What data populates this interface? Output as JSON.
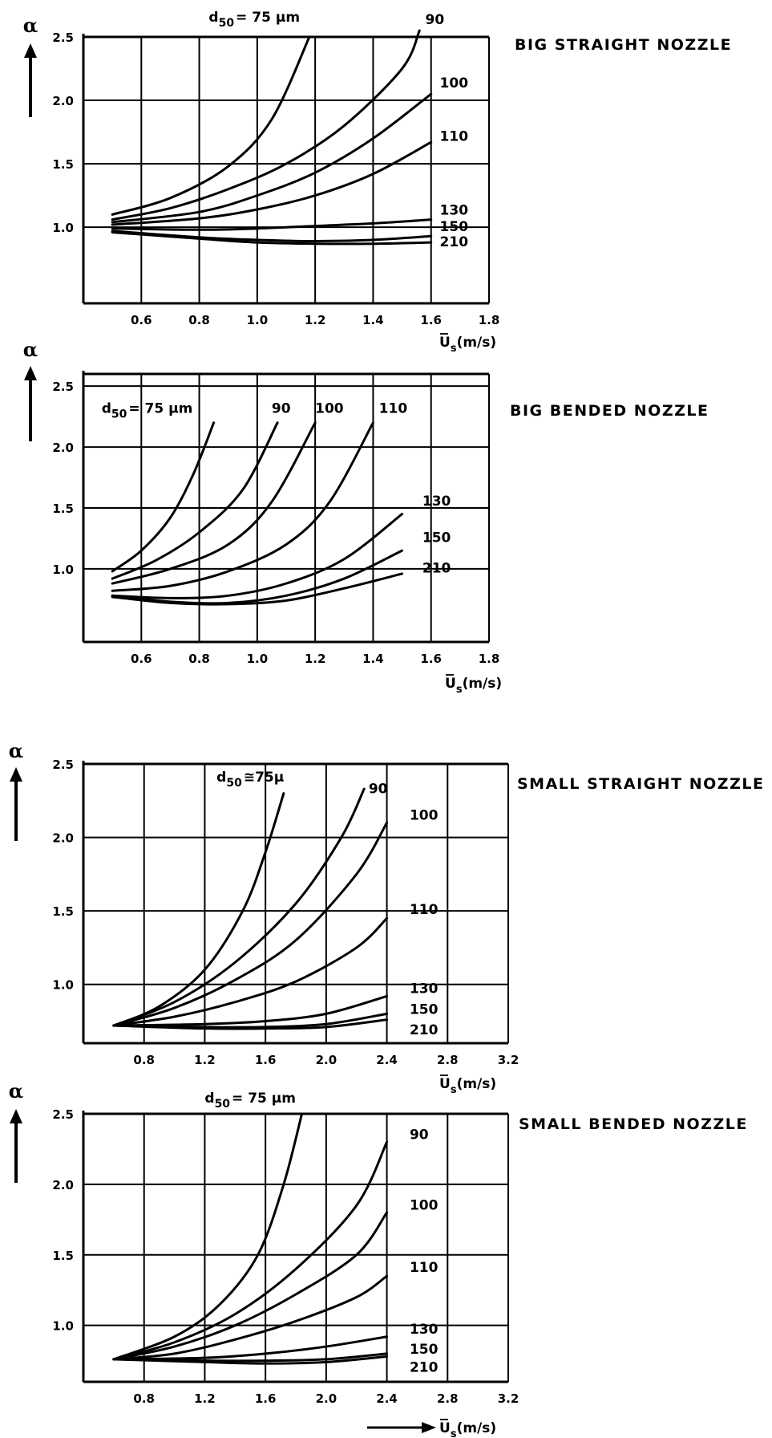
{
  "chart_data": [
    {
      "type": "line",
      "title": "BIG STRAIGHT NOZZLE",
      "ylabel": "α",
      "xlabel_main": "U",
      "xlabel_sub": "s",
      "xlabel_unit": "(m/s)",
      "xlim": [
        0.4,
        1.8
      ],
      "ylim": [
        0.4,
        2.5
      ],
      "xticks": [
        "0.6",
        "0.8",
        "1.0",
        "1.2",
        "1.4",
        "1.6",
        "1.8"
      ],
      "yticks": [
        "1.0",
        "1.5",
        "2.0",
        "2.5"
      ],
      "grid": true,
      "series": [
        {
          "name": "d50 = 75 μm",
          "points": [
            [
              0.5,
              1.1
            ],
            [
              0.7,
              1.23
            ],
            [
              0.9,
              1.48
            ],
            [
              1.05,
              1.85
            ],
            [
              1.18,
              2.5
            ]
          ]
        },
        {
          "name": "90",
          "points": [
            [
              0.5,
              1.06
            ],
            [
              0.7,
              1.15
            ],
            [
              0.9,
              1.3
            ],
            [
              1.1,
              1.5
            ],
            [
              1.3,
              1.8
            ],
            [
              1.5,
              2.25
            ],
            [
              1.56,
              2.55
            ]
          ]
        },
        {
          "name": "100",
          "points": [
            [
              0.5,
              1.04
            ],
            [
              0.8,
              1.12
            ],
            [
              1.0,
              1.25
            ],
            [
              1.2,
              1.43
            ],
            [
              1.4,
              1.7
            ],
            [
              1.6,
              2.05
            ]
          ]
        },
        {
          "name": "110",
          "points": [
            [
              0.5,
              1.02
            ],
            [
              0.8,
              1.07
            ],
            [
              1.0,
              1.14
            ],
            [
              1.2,
              1.25
            ],
            [
              1.4,
              1.42
            ],
            [
              1.6,
              1.67
            ]
          ]
        },
        {
          "name": "130",
          "points": [
            [
              0.5,
              0.99
            ],
            [
              0.8,
              0.98
            ],
            [
              1.0,
              0.99
            ],
            [
              1.2,
              1.01
            ],
            [
              1.4,
              1.03
            ],
            [
              1.6,
              1.06
            ]
          ]
        },
        {
          "name": "150",
          "points": [
            [
              0.5,
              0.97
            ],
            [
              0.8,
              0.92
            ],
            [
              1.0,
              0.9
            ],
            [
              1.2,
              0.89
            ],
            [
              1.4,
              0.9
            ],
            [
              1.6,
              0.93
            ]
          ]
        },
        {
          "name": "210",
          "points": [
            [
              0.5,
              0.96
            ],
            [
              0.8,
              0.91
            ],
            [
              1.0,
              0.88
            ],
            [
              1.2,
              0.87
            ],
            [
              1.4,
              0.87
            ],
            [
              1.6,
              0.88
            ]
          ]
        }
      ],
      "labels": [
        {
          "text": "d",
          "sub": "50",
          "rest": "= 75 μm",
          "x": 0.99,
          "y": 2.62
        },
        {
          "text": "90",
          "x": 1.58,
          "y": 2.6
        },
        {
          "text": "100",
          "x": 1.63,
          "y": 2.1
        },
        {
          "text": "110",
          "x": 1.63,
          "y": 1.68
        },
        {
          "text": "130",
          "x": 1.63,
          "y": 1.1
        },
        {
          "text": "150",
          "x": 1.63,
          "y": 0.97
        },
        {
          "text": "210",
          "x": 1.63,
          "y": 0.85
        }
      ]
    },
    {
      "type": "line",
      "title": "BIG BENDED NOZZLE",
      "ylabel": "α",
      "xlabel_main": "U",
      "xlabel_sub": "s",
      "xlabel_unit": "(m/s)",
      "xlim": [
        0.4,
        1.8
      ],
      "ylim": [
        0.4,
        2.6
      ],
      "xticks": [
        "0.6",
        "0.8",
        "1.0",
        "1.2",
        "1.4",
        "1.6",
        "1.8"
      ],
      "yticks": [
        "1.0",
        "1.5",
        "2.0",
        "2.5"
      ],
      "grid": true,
      "series": [
        {
          "name": "d50 = 75 μm",
          "points": [
            [
              0.5,
              0.98
            ],
            [
              0.6,
              1.15
            ],
            [
              0.7,
              1.42
            ],
            [
              0.78,
              1.78
            ],
            [
              0.85,
              2.2
            ]
          ]
        },
        {
          "name": "90",
          "points": [
            [
              0.5,
              0.92
            ],
            [
              0.65,
              1.07
            ],
            [
              0.8,
              1.3
            ],
            [
              0.95,
              1.65
            ],
            [
              1.07,
              2.2
            ]
          ]
        },
        {
          "name": "100",
          "points": [
            [
              0.5,
              0.88
            ],
            [
              0.7,
              1.0
            ],
            [
              0.9,
              1.2
            ],
            [
              1.05,
              1.55
            ],
            [
              1.2,
              2.2
            ]
          ]
        },
        {
          "name": "110",
          "points": [
            [
              0.5,
              0.82
            ],
            [
              0.7,
              0.86
            ],
            [
              0.9,
              0.98
            ],
            [
              1.1,
              1.2
            ],
            [
              1.25,
              1.55
            ],
            [
              1.4,
              2.2
            ]
          ]
        },
        {
          "name": "130",
          "points": [
            [
              0.5,
              0.78
            ],
            [
              0.7,
              0.76
            ],
            [
              0.9,
              0.78
            ],
            [
              1.1,
              0.88
            ],
            [
              1.3,
              1.08
            ],
            [
              1.5,
              1.45
            ]
          ]
        },
        {
          "name": "150",
          "points": [
            [
              0.5,
              0.78
            ],
            [
              0.7,
              0.73
            ],
            [
              0.9,
              0.72
            ],
            [
              1.1,
              0.78
            ],
            [
              1.3,
              0.92
            ],
            [
              1.5,
              1.15
            ]
          ]
        },
        {
          "name": "210",
          "points": [
            [
              0.5,
              0.77
            ],
            [
              0.7,
              0.72
            ],
            [
              0.9,
              0.71
            ],
            [
              1.1,
              0.74
            ],
            [
              1.3,
              0.84
            ],
            [
              1.5,
              0.96
            ]
          ]
        }
      ],
      "labels": [
        {
          "text": "d",
          "sub": "50",
          "rest": "= 75 μm",
          "x": 0.62,
          "y": 2.28
        },
        {
          "text": "90",
          "x": 1.05,
          "y": 2.28
        },
        {
          "text": "100",
          "x": 1.2,
          "y": 2.28
        },
        {
          "text": "110",
          "x": 1.42,
          "y": 2.28
        },
        {
          "text": "130",
          "x": 1.57,
          "y": 1.52
        },
        {
          "text": "150",
          "x": 1.57,
          "y": 1.22
        },
        {
          "text": "210",
          "x": 1.57,
          "y": 0.97
        }
      ]
    },
    {
      "type": "line",
      "title": "SMALL STRAIGHT NOZZLE",
      "ylabel": "α",
      "xlabel_main": "U",
      "xlabel_sub": "s",
      "xlabel_unit": "(m/s)",
      "xlim": [
        0.4,
        3.2
      ],
      "ylim": [
        0.6,
        2.5
      ],
      "xticks": [
        "0.8",
        "1.2",
        "1.6",
        "2.0",
        "2.4",
        "2.8",
        "3.2"
      ],
      "yticks": [
        "1.0",
        "1.5",
        "2.0",
        "2.5"
      ],
      "grid": true,
      "series": [
        {
          "name": "d50 ≅ 75μ",
          "points": [
            [
              0.6,
              0.72
            ],
            [
              0.9,
              0.85
            ],
            [
              1.2,
              1.1
            ],
            [
              1.45,
              1.5
            ],
            [
              1.6,
              1.9
            ],
            [
              1.72,
              2.3
            ]
          ]
        },
        {
          "name": "90",
          "points": [
            [
              0.6,
              0.72
            ],
            [
              1.0,
              0.88
            ],
            [
              1.4,
              1.15
            ],
            [
              1.8,
              1.55
            ],
            [
              2.1,
              2.0
            ],
            [
              2.25,
              2.33
            ]
          ]
        },
        {
          "name": "100",
          "points": [
            [
              0.6,
              0.72
            ],
            [
              1.0,
              0.84
            ],
            [
              1.4,
              1.03
            ],
            [
              1.8,
              1.3
            ],
            [
              2.2,
              1.75
            ],
            [
              2.4,
              2.1
            ]
          ]
        },
        {
          "name": "110",
          "points": [
            [
              0.6,
              0.72
            ],
            [
              1.0,
              0.78
            ],
            [
              1.4,
              0.88
            ],
            [
              1.8,
              1.02
            ],
            [
              2.2,
              1.25
            ],
            [
              2.4,
              1.45
            ]
          ]
        },
        {
          "name": "130",
          "points": [
            [
              0.6,
              0.72
            ],
            [
              1.2,
              0.73
            ],
            [
              1.6,
              0.75
            ],
            [
              2.0,
              0.8
            ],
            [
              2.4,
              0.92
            ]
          ]
        },
        {
          "name": "150",
          "points": [
            [
              0.6,
              0.72
            ],
            [
              1.2,
              0.71
            ],
            [
              1.6,
              0.71
            ],
            [
              2.0,
              0.73
            ],
            [
              2.4,
              0.8
            ]
          ]
        },
        {
          "name": "210",
          "points": [
            [
              0.6,
              0.72
            ],
            [
              1.2,
              0.7
            ],
            [
              1.6,
              0.7
            ],
            [
              2.0,
              0.71
            ],
            [
              2.4,
              0.76
            ]
          ]
        }
      ],
      "labels": [
        {
          "text": "d",
          "sub": "50",
          "rest": "≅75μ",
          "x": 1.5,
          "y": 2.38
        },
        {
          "text": "90",
          "x": 2.28,
          "y": 2.3
        },
        {
          "text": "100",
          "x": 2.55,
          "y": 2.12
        },
        {
          "text": "110",
          "x": 2.55,
          "y": 1.48
        },
        {
          "text": "130",
          "x": 2.55,
          "y": 0.94
        },
        {
          "text": "150",
          "x": 2.55,
          "y": 0.8
        },
        {
          "text": "210",
          "x": 2.55,
          "y": 0.66
        }
      ]
    },
    {
      "type": "line",
      "title": "SMALL BENDED NOZZLE",
      "ylabel": "α",
      "xlabel_main": "U",
      "xlabel_sub": "s",
      "xlabel_unit": "(m/s)",
      "xlim": [
        0.4,
        3.2
      ],
      "ylim": [
        0.6,
        2.5
      ],
      "xticks": [
        "0.8",
        "1.2",
        "1.6",
        "2.0",
        "2.4",
        "2.8",
        "3.2"
      ],
      "yticks": [
        "1.0",
        "1.5",
        "2.0",
        "2.5"
      ],
      "grid": true,
      "series": [
        {
          "name": "d50 = 75 μm",
          "points": [
            [
              0.6,
              0.76
            ],
            [
              1.0,
              0.92
            ],
            [
              1.3,
              1.15
            ],
            [
              1.55,
              1.5
            ],
            [
              1.72,
              2.0
            ],
            [
              1.84,
              2.5
            ]
          ]
        },
        {
          "name": "90",
          "points": [
            [
              0.6,
              0.76
            ],
            [
              1.0,
              0.88
            ],
            [
              1.4,
              1.08
            ],
            [
              1.8,
              1.4
            ],
            [
              2.2,
              1.85
            ],
            [
              2.4,
              2.3
            ]
          ]
        },
        {
          "name": "100",
          "points": [
            [
              0.6,
              0.76
            ],
            [
              1.0,
              0.85
            ],
            [
              1.4,
              1.0
            ],
            [
              1.8,
              1.22
            ],
            [
              2.2,
              1.5
            ],
            [
              2.4,
              1.8
            ]
          ]
        },
        {
          "name": "110",
          "points": [
            [
              0.6,
              0.76
            ],
            [
              1.0,
              0.8
            ],
            [
              1.4,
              0.9
            ],
            [
              1.8,
              1.03
            ],
            [
              2.2,
              1.2
            ],
            [
              2.4,
              1.35
            ]
          ]
        },
        {
          "name": "130",
          "points": [
            [
              0.6,
              0.76
            ],
            [
              1.2,
              0.77
            ],
            [
              1.6,
              0.8
            ],
            [
              2.0,
              0.85
            ],
            [
              2.4,
              0.92
            ]
          ]
        },
        {
          "name": "150",
          "points": [
            [
              0.6,
              0.76
            ],
            [
              1.2,
              0.75
            ],
            [
              1.6,
              0.75
            ],
            [
              2.0,
              0.76
            ],
            [
              2.4,
              0.8
            ]
          ]
        },
        {
          "name": "210",
          "points": [
            [
              0.6,
              0.76
            ],
            [
              1.2,
              0.74
            ],
            [
              1.6,
              0.73
            ],
            [
              2.0,
              0.74
            ],
            [
              2.4,
              0.78
            ]
          ]
        }
      ],
      "labels": [
        {
          "text": "d",
          "sub": "50",
          "rest": "= 75 μm",
          "x": 1.5,
          "y": 2.58
        },
        {
          "text": "90",
          "x": 2.55,
          "y": 2.32
        },
        {
          "text": "100",
          "x": 2.55,
          "y": 1.82
        },
        {
          "text": "110",
          "x": 2.55,
          "y": 1.38
        },
        {
          "text": "130",
          "x": 2.55,
          "y": 0.94
        },
        {
          "text": "150",
          "x": 2.55,
          "y": 0.8
        },
        {
          "text": "210",
          "x": 2.55,
          "y": 0.67
        }
      ]
    }
  ]
}
